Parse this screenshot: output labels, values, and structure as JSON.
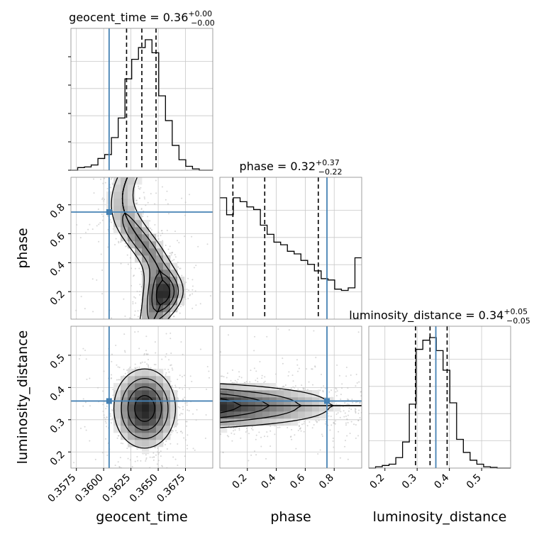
{
  "chart_data": {
    "type": "corner",
    "parameters": [
      "geocent_time",
      "phase",
      "luminosity_distance"
    ],
    "injection": {
      "geocent_time": 0.3605,
      "phase": 0.75,
      "luminosity_distance": 0.358
    },
    "ranges": {
      "geocent_time": [
        0.357,
        0.37
      ],
      "phase": [
        0.01,
        0.99
      ],
      "luminosity_distance": [
        0.15,
        0.59
      ]
    },
    "ticks": {
      "geocent_time": {
        "values": [
          0.3575,
          0.36,
          0.3625,
          0.365,
          0.3675
        ],
        "labels": [
          "0.3575",
          "0.3600",
          "0.3625",
          "0.3650",
          "0.3675"
        ]
      },
      "phase": {
        "values": [
          0.2,
          0.4,
          0.6,
          0.8
        ],
        "labels": [
          "0.2",
          "0.4",
          "0.6",
          "0.8"
        ]
      },
      "luminosity_distance": {
        "values": [
          0.2,
          0.3,
          0.4,
          0.5
        ],
        "labels": [
          "0.2",
          "0.3",
          "0.4",
          "0.5"
        ]
      }
    },
    "titles": [
      {
        "param": "geocent_time",
        "prefix": "geocent_time = 0.36",
        "plus": "+0.00",
        "minus": "−0.00"
      },
      {
        "param": "phase",
        "prefix": "phase = 0.32",
        "plus": "+0.37",
        "minus": "−0.22"
      },
      {
        "param": "luminosity_distance",
        "prefix": "luminosity_distance = 0.34",
        "plus": "+0.05",
        "minus": "−0.05"
      }
    ],
    "quantiles": {
      "geocent_time": [
        0.3621,
        0.3635,
        0.3648
      ],
      "phase": [
        0.1,
        0.32,
        0.69
      ],
      "luminosity_distance": [
        0.295,
        0.34,
        0.393
      ]
    },
    "histograms": {
      "geocent_time": {
        "edges": [
          0.357,
          0.37
        ],
        "counts": [
          0,
          0.02,
          0.025,
          0.04,
          0.09,
          0.12,
          0.25,
          0.4,
          0.7,
          0.85,
          0.94,
          1.0,
          0.9,
          0.57,
          0.38,
          0.19,
          0.08,
          0.03,
          0.01,
          0,
          0
        ]
      },
      "phase": {
        "edges": [
          0.01,
          0.99
        ],
        "counts": [
          0.93,
          0.8,
          0.93,
          0.9,
          0.86,
          0.84,
          0.72,
          0.65,
          0.59,
          0.57,
          0.52,
          0.5,
          0.45,
          0.42,
          0.37,
          0.31,
          0.3,
          0.23,
          0.22,
          0.24,
          0.47
        ]
      },
      "luminosity_distance": {
        "edges": [
          0.15,
          0.59
        ],
        "counts": [
          0,
          0.01,
          0.02,
          0.03,
          0.08,
          0.2,
          0.49,
          0.91,
          0.98,
          1.0,
          0.9,
          0.75,
          0.5,
          0.22,
          0.12,
          0.06,
          0.03,
          0.01,
          0.005,
          0,
          0
        ]
      }
    },
    "xlabels": [
      "geocent_time",
      "phase",
      "luminosity_distance"
    ],
    "ylabels": [
      "phase",
      "luminosity_distance"
    ],
    "grid": true,
    "colors": {
      "truth": "#4682b4",
      "hist": "#000000",
      "density": "#000000"
    }
  }
}
